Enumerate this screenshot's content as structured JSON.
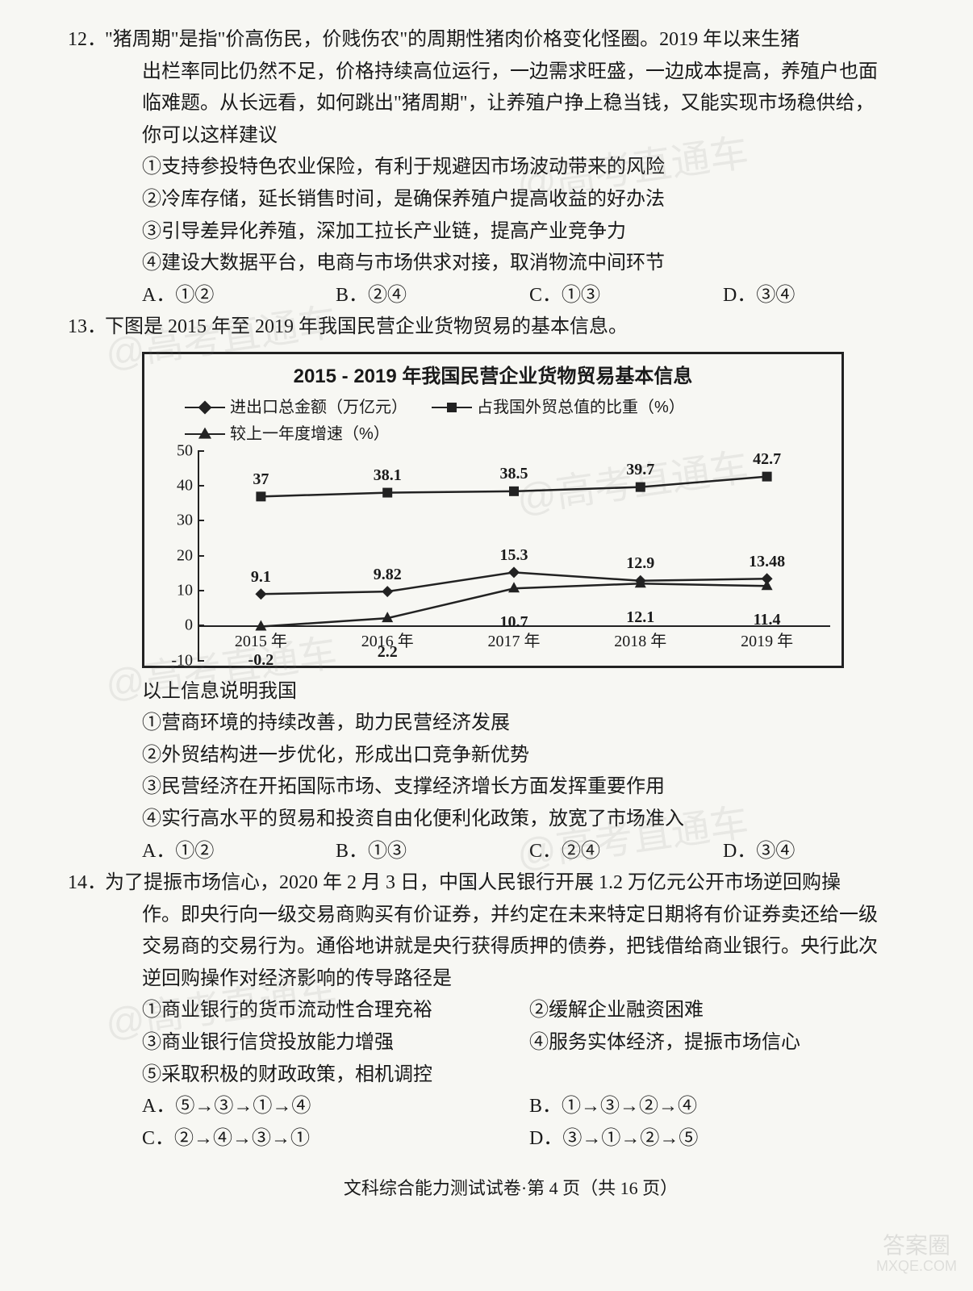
{
  "watermark": "@高考直通车",
  "corner_wm_top": "答案圈",
  "corner_wm_bot": "MXQE.COM",
  "footer": "文科综合能力测试试卷·第 4 页（共 16 页）",
  "q12": {
    "num": "12．",
    "stem1": "\"猪周期\"是指\"价高伤民，价贱伤农\"的周期性猪肉价格变化怪圈。2019 年以来生猪",
    "stem2": "出栏率同比仍然不足，价格持续高位运行，一边需求旺盛，一边成本提高，养殖户也面",
    "stem3": "临难题。从长远看，如何跳出\"猪周期\"，让养殖户挣上稳当钱，又能实现市场稳供给，",
    "stem4": "你可以这样建议",
    "s1": "①支持参投特色农业保险，有利于规避因市场波动带来的风险",
    "s2": "②冷库存储，延长销售时间，是确保养殖户提高收益的好办法",
    "s3": "③引导差异化养殖，深加工拉长产业链，提高产业竞争力",
    "s4": "④建设大数据平台，电商与市场供求对接，取消物流中间环节",
    "A": "A．①②",
    "B": "B．②④",
    "C": "C．①③",
    "D": "D．③④"
  },
  "q13": {
    "num": "13．",
    "stem": "下图是 2015 年至 2019 年我国民营企业货物贸易的基本信息。",
    "after": "以上信息说明我国",
    "s1": "①营商环境的持续改善，助力民营经济发展",
    "s2": "②外贸结构进一步优化，形成出口竞争新优势",
    "s3": "③民营经济在开拓国际市场、支撑经济增长方面发挥重要作用",
    "s4": "④实行高水平的贸易和投资自由化便利化政策，放宽了市场准入",
    "A": "A．①②",
    "B": "B．①③",
    "C": "C．②④",
    "D": "D．③④"
  },
  "chart": {
    "title": "2015 - 2019 年我国民营企业货物贸易基本信息",
    "legend1": "进出口总金额（万亿元）",
    "legend2": "占我国外贸总值的比重（%）",
    "legend3": "较上一年度增速（%）",
    "ymin": -10,
    "ymax": 50,
    "ystep": 10,
    "yticks": [
      -10,
      0,
      10,
      20,
      30,
      40,
      50
    ],
    "categories": [
      "2015 年",
      "2016 年",
      "2017 年",
      "2018 年",
      "2019 年"
    ],
    "series_share": {
      "name": "share",
      "marker": "square",
      "values": [
        37,
        38.1,
        38.5,
        39.7,
        42.7
      ]
    },
    "series_total": {
      "name": "total",
      "marker": "diamond",
      "values": [
        9.1,
        9.82,
        15.3,
        12.9,
        13.48
      ]
    },
    "series_growth": {
      "name": "growth",
      "marker": "triangle",
      "values": [
        -0.2,
        2.2,
        10.7,
        12.1,
        11.4
      ]
    },
    "label_color": "#111",
    "line_color": "#222",
    "bg": "#f7f7f3",
    "label_fontsize": 20
  },
  "q14": {
    "num": "14．",
    "stem1": "为了提振市场信心，2020 年 2 月 3 日，中国人民银行开展 1.2 万亿元公开市场逆回购操",
    "stem2": "作。即央行向一级交易商购买有价证券，并约定在未来特定日期将有价证券卖还给一级",
    "stem3": "交易商的交易行为。通俗地讲就是央行获得质押的债券，把钱借给商业银行。央行此次",
    "stem4": "逆回购操作对经济影响的传导路径是",
    "s1": "①商业银行的货币流动性合理充裕",
    "s2": "②缓解企业融资困难",
    "s3": "③商业银行信贷投放能力增强",
    "s4": "④服务实体经济，提振市场信心",
    "s5": "⑤采取积极的财政政策，相机调控",
    "A": "A．⑤→③→①→④",
    "B": "B．①→③→②→④",
    "C": "C．②→④→③→①",
    "D": "D．③→①→②→⑤"
  }
}
